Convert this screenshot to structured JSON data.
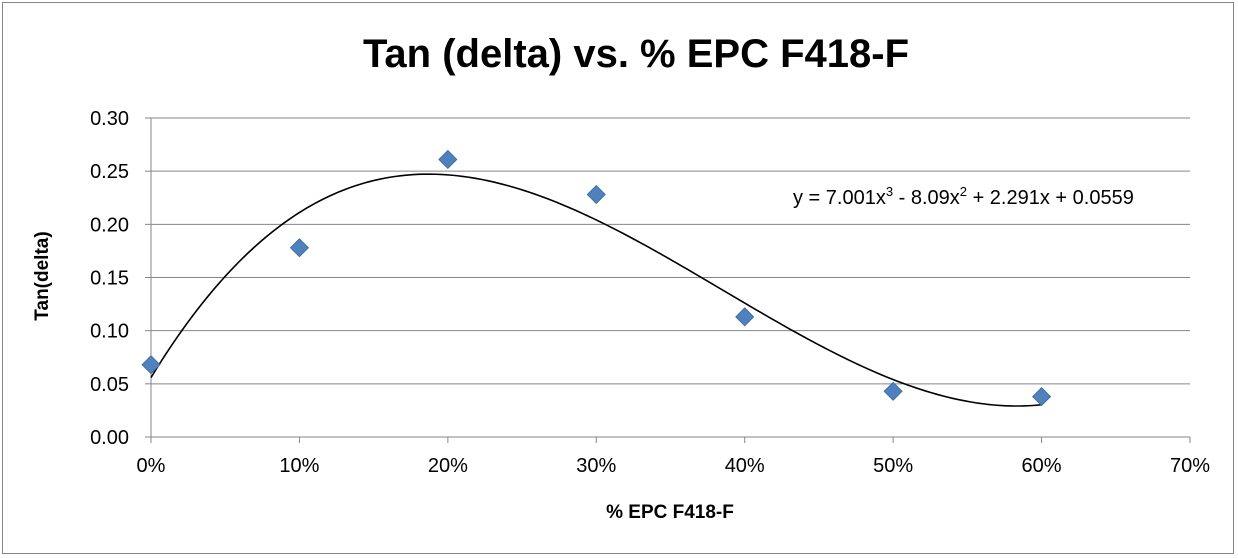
{
  "chart_data": {
    "type": "scatter",
    "title": "Tan (delta) vs. % EPC F418-F",
    "xlabel": "% EPC F418-F",
    "ylabel": "Tan(delta)",
    "xlim": [
      0,
      0.7
    ],
    "ylim": [
      0,
      0.3
    ],
    "x_ticks": [
      "0%",
      "10%",
      "20%",
      "30%",
      "40%",
      "50%",
      "60%",
      "70%"
    ],
    "y_ticks": [
      "0.00",
      "0.05",
      "0.10",
      "0.15",
      "0.20",
      "0.25",
      "0.30"
    ],
    "grid": "horizontal",
    "legend": "none",
    "series": [
      {
        "x": [
          0.0,
          0.1,
          0.2,
          0.3,
          0.4,
          0.5,
          0.6
        ],
        "y": [
          0.068,
          0.178,
          0.261,
          0.228,
          0.113,
          0.043,
          0.038
        ],
        "marker": "diamond",
        "color": "#4F81BD"
      }
    ],
    "trendline": {
      "type": "polynomial",
      "order": 3,
      "coefficients": [
        7.001,
        -8.09,
        2.291,
        0.0559
      ],
      "x_range": [
        0,
        0.6
      ],
      "color": "#000000",
      "equation": {
        "prefix": "y = 7.001x",
        "exp1": "3",
        "middle": " - 8.09x",
        "exp2": "2",
        "suffix": " + 2.291x + 0.0559"
      }
    }
  }
}
